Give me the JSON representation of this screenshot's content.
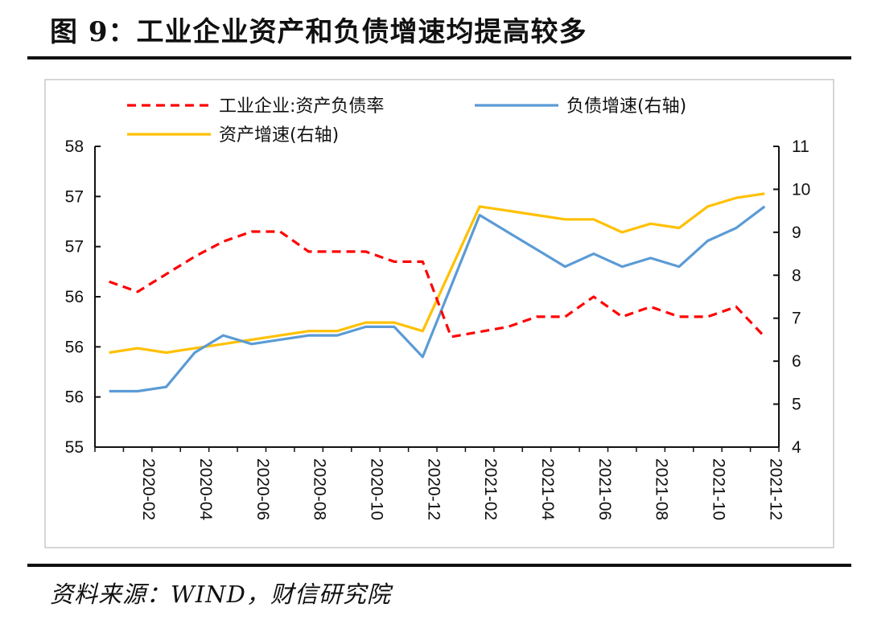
{
  "figure": {
    "title": "图 9：工业企业资产和负债增速均提高较多",
    "source": "资料来源：WIND，财信研究院"
  },
  "chart_data": {
    "type": "line",
    "x": [
      "2020-01",
      "2020-02",
      "2020-03",
      "2020-04",
      "2020-05",
      "2020-06",
      "2020-07",
      "2020-08",
      "2020-09",
      "2020-10",
      "2020-11",
      "2020-12",
      "2021-01",
      "2021-02",
      "2021-03",
      "2021-04",
      "2021-05",
      "2021-06",
      "2021-07",
      "2021-08",
      "2021-09",
      "2021-10",
      "2021-11",
      "2021-12"
    ],
    "x_tick_labels": [
      "2020-02",
      "2020-04",
      "2020-06",
      "2020-08",
      "2020-10",
      "2020-12",
      "2021-02",
      "2021-04",
      "2021-06",
      "2021-08",
      "2021-10",
      "2021-12"
    ],
    "left_axis": {
      "ylim": [
        55,
        58
      ],
      "tick_values": [
        55,
        55.5,
        56,
        56.5,
        57,
        57.5,
        58
      ],
      "tick_labels": [
        "55",
        "56",
        "56",
        "56",
        "57",
        "57",
        "58"
      ]
    },
    "right_axis": {
      "ylim": [
        4,
        11
      ],
      "tick_values": [
        4,
        5,
        6,
        7,
        8,
        9,
        10,
        11
      ],
      "tick_labels": [
        "4",
        "5",
        "6",
        "7",
        "8",
        "9",
        "10",
        "11"
      ]
    },
    "legend": {
      "placement": "top"
    },
    "grid": false,
    "series": [
      {
        "name": "工业企业:资产负债率",
        "axis": "left",
        "color": "#ff0000",
        "style": "dashed",
        "values": [
          56.65,
          56.55,
          null,
          56.9,
          57.05,
          57.15,
          57.15,
          56.95,
          56.95,
          56.95,
          56.85,
          56.85,
          56.1,
          null,
          56.2,
          56.3,
          56.3,
          56.5,
          56.3,
          56.4,
          56.3,
          56.3,
          56.4,
          56.1
        ]
      },
      {
        "name": "负债增速(右轴)",
        "axis": "right",
        "color": "#5b9bd5",
        "style": "solid",
        "values": [
          5.3,
          5.3,
          5.4,
          6.2,
          6.6,
          6.4,
          6.5,
          6.6,
          6.6,
          6.8,
          6.8,
          6.1,
          null,
          9.4,
          9.0,
          8.6,
          8.2,
          8.5,
          8.2,
          8.4,
          8.2,
          8.8,
          9.1,
          9.6
        ]
      },
      {
        "name": "资产增速(右轴)",
        "axis": "right",
        "color": "#ffc000",
        "style": "solid",
        "values": [
          6.2,
          6.3,
          6.2,
          6.3,
          6.4,
          6.5,
          6.6,
          6.7,
          6.7,
          6.9,
          6.9,
          6.7,
          null,
          9.6,
          9.5,
          9.4,
          9.3,
          9.3,
          9.0,
          9.2,
          9.1,
          9.6,
          9.8,
          9.9
        ]
      }
    ],
    "colors": {
      "frame": "#c8c8c8",
      "axis": "#111111"
    }
  }
}
